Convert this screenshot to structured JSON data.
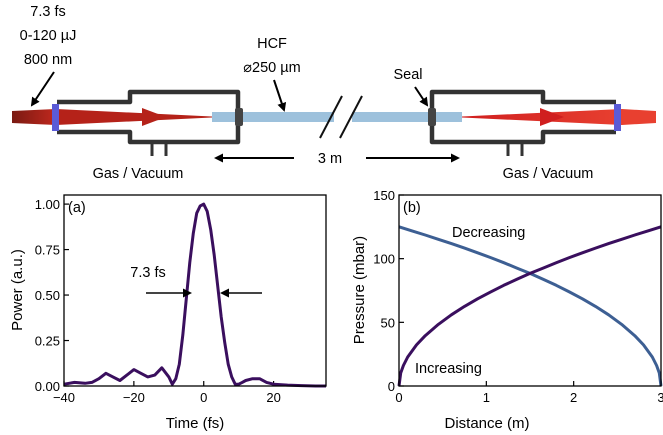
{
  "setup": {
    "laser_lines": [
      "7.3 fs",
      "0-120 µJ",
      "800 nm"
    ],
    "hcf_title": "HCF",
    "hcf_diameter": "⌀250 µm",
    "seal_label": "Seal",
    "length_label": "3 m",
    "gas_left": "Gas / Vacuum",
    "gas_right": "Gas / Vacuum"
  },
  "chart_data": [
    {
      "type": "line",
      "panel_label": "(a)",
      "title": "",
      "xlabel": "Time (fs)",
      "ylabel": "Power (a.u.)",
      "xlim": [
        -40,
        35
      ],
      "ylim": [
        0,
        1.05
      ],
      "xticks": [
        "−40",
        "−20",
        "0",
        "20"
      ],
      "xtick_values": [
        -40,
        -20,
        0,
        20
      ],
      "yticks": [
        "0.00",
        "0.25",
        "0.50",
        "0.75",
        "1.00"
      ],
      "ytick_values": [
        0,
        0.25,
        0.5,
        0.75,
        1.0
      ],
      "annotation": "7.3 fs",
      "series": [
        {
          "color": "#3a0f5e",
          "x": [
            -40,
            -37,
            -34,
            -32,
            -30,
            -28,
            -26,
            -24,
            -22,
            -20,
            -18,
            -16,
            -14,
            -12,
            -10,
            -9,
            -8,
            -7,
            -6,
            -5,
            -4,
            -3,
            -2,
            -1,
            0,
            1,
            2,
            3,
            4,
            5,
            6,
            7,
            8,
            9,
            10,
            11,
            12,
            14,
            16,
            18,
            20,
            24,
            28,
            32,
            35
          ],
          "y": [
            0.01,
            0.02,
            0.015,
            0.02,
            0.04,
            0.07,
            0.05,
            0.03,
            0.06,
            0.09,
            0.07,
            0.05,
            0.06,
            0.1,
            0.05,
            0.01,
            0.04,
            0.12,
            0.28,
            0.48,
            0.68,
            0.84,
            0.95,
            0.99,
            1.0,
            0.96,
            0.86,
            0.72,
            0.55,
            0.38,
            0.24,
            0.12,
            0.05,
            0.01,
            0.01,
            0.02,
            0.03,
            0.04,
            0.04,
            0.02,
            0.01,
            0.005,
            0.002,
            0.0,
            0.0
          ]
        }
      ]
    },
    {
      "type": "line",
      "panel_label": "(b)",
      "title": "",
      "xlabel": "Distance (m)",
      "ylabel": "Pressure (mbar)",
      "xlim": [
        0,
        3
      ],
      "ylim": [
        0,
        150
      ],
      "xticks": [
        "0",
        "1",
        "2",
        "3"
      ],
      "xtick_values": [
        0,
        1,
        2,
        3
      ],
      "yticks": [
        "0",
        "50",
        "100",
        "150"
      ],
      "ytick_values": [
        0,
        50,
        100,
        150
      ],
      "series": [
        {
          "name": "Decreasing",
          "color": "#3d5f93",
          "x": [
            0,
            0.15,
            0.3,
            0.45,
            0.6,
            0.75,
            0.9,
            1.05,
            1.2,
            1.35,
            1.5,
            1.65,
            1.8,
            1.95,
            2.1,
            2.25,
            2.4,
            2.55,
            2.7,
            2.8,
            2.9,
            2.95,
            2.98,
            3.0
          ],
          "y": [
            125,
            121.8,
            118.6,
            115.2,
            111.8,
            108.3,
            104.6,
            100.8,
            96.8,
            92.6,
            88.4,
            83.8,
            79.1,
            73.9,
            68.5,
            62.5,
            55.9,
            48.4,
            39.5,
            32.3,
            22.8,
            16.1,
            10.2,
            0
          ]
        },
        {
          "name": "Increasing",
          "color": "#3a0f5e",
          "x": [
            0,
            0.02,
            0.05,
            0.1,
            0.2,
            0.3,
            0.45,
            0.6,
            0.75,
            0.9,
            1.05,
            1.2,
            1.35,
            1.5,
            1.65,
            1.8,
            1.95,
            2.1,
            2.25,
            2.4,
            2.55,
            2.7,
            2.85,
            3.0
          ],
          "y": [
            0,
            10.2,
            16.1,
            22.8,
            32.3,
            39.5,
            48.4,
            55.9,
            62.5,
            68.5,
            73.9,
            79.1,
            83.8,
            88.4,
            92.6,
            96.8,
            100.8,
            104.6,
            108.3,
            111.8,
            115.2,
            118.6,
            121.8,
            125
          ]
        }
      ]
    }
  ]
}
